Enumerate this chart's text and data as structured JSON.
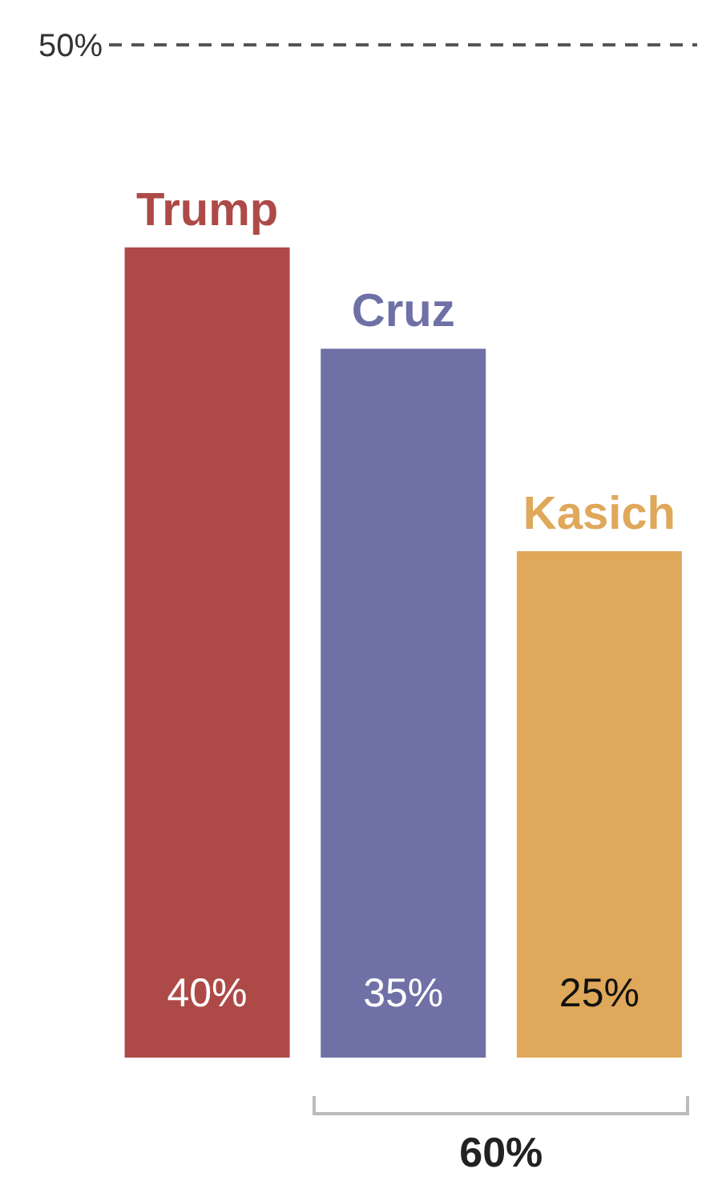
{
  "chart_data": {
    "type": "bar",
    "categories": [
      "Trump",
      "Cruz",
      "Kasich"
    ],
    "values": [
      40,
      35,
      25
    ],
    "colors": [
      "#ad4a47",
      "#6f70a6",
      "#dfa85a"
    ],
    "ylim": [
      0,
      50
    ],
    "tick_labels": false,
    "grid": false,
    "legend": false,
    "data_labels": true,
    "value_labels": [
      "40%",
      "35%",
      "25%"
    ],
    "ref_lines": [
      {
        "axis": "y",
        "value": 50,
        "label": "50%",
        "color": "#555555",
        "line_style": "dashed"
      }
    ],
    "annotations": [
      "60%"
    ]
  }
}
